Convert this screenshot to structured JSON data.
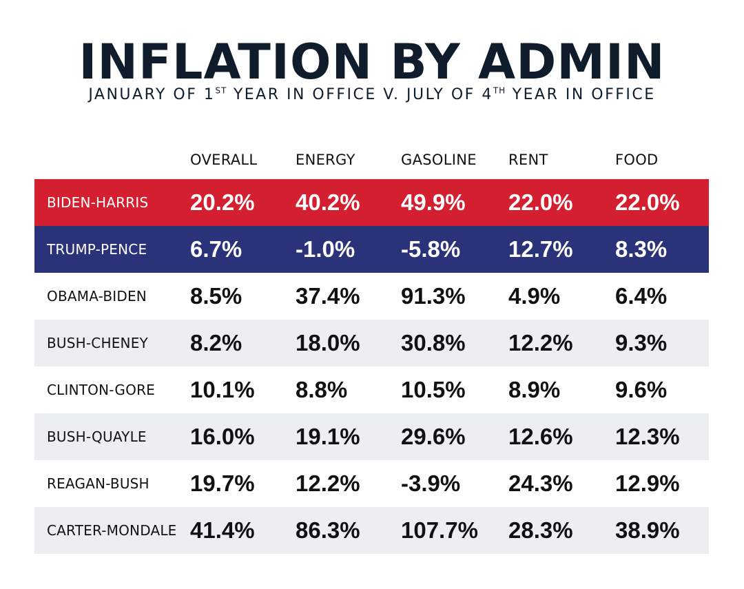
{
  "title": "INFLATION BY ADMIN",
  "subtitle": {
    "part1": "JANUARY OF 1",
    "sup1": "ST",
    "part2": " YEAR IN OFFICE V. JULY OF 4",
    "sup2": "TH",
    "part3": " YEAR IN OFFICE"
  },
  "colors": {
    "title_text": "#0f1c2b",
    "biden_row": "#d31f2f",
    "trump_row": "#2a327a",
    "stripe": "#ebeff2",
    "plain": "#ffffff"
  },
  "chart_data": {
    "type": "table",
    "title": "INFLATION BY ADMIN",
    "subtitle": "JANUARY OF 1ST YEAR IN OFFICE V. JULY OF 4TH YEAR IN OFFICE",
    "columns": [
      "OVERALL",
      "ENERGY",
      "GASOLINE",
      "RENT",
      "FOOD"
    ],
    "rows": [
      {
        "name": "BIDEN-HARRIS",
        "values": [
          "20.2%",
          "40.2%",
          "49.9%",
          "22.0%",
          "22.0%"
        ],
        "fill": "#d31f2f"
      },
      {
        "name": "TRUMP-PENCE",
        "values": [
          "6.7%",
          "-1.0%",
          "-5.8%",
          "12.7%",
          "8.3%"
        ],
        "fill": "#2a327a"
      },
      {
        "name": "OBAMA-BIDEN",
        "values": [
          "8.5%",
          "37.4%",
          "91.3%",
          "4.9%",
          "6.4%"
        ],
        "fill": "#ffffff"
      },
      {
        "name": "BUSH-CHENEY",
        "values": [
          "8.2%",
          "18.0%",
          "30.8%",
          "12.2%",
          "9.3%"
        ],
        "fill": "#ebeff2"
      },
      {
        "name": "CLINTON-GORE",
        "values": [
          "10.1%",
          "8.8%",
          "10.5%",
          "8.9%",
          "9.6%"
        ],
        "fill": "#ffffff"
      },
      {
        "name": "BUSH-QUAYLE",
        "values": [
          "16.0%",
          "19.1%",
          "29.6%",
          "12.6%",
          "12.3%"
        ],
        "fill": "#ebeff2"
      },
      {
        "name": "REAGAN-BUSH",
        "values": [
          "19.7%",
          "12.2%",
          "-3.9%",
          "24.3%",
          "12.9%"
        ],
        "fill": "#ffffff"
      },
      {
        "name": "CARTER-MONDALE",
        "values": [
          "41.4%",
          "86.3%",
          "107.7%",
          "28.3%",
          "38.9%"
        ],
        "fill": "#ebeff2"
      }
    ]
  }
}
